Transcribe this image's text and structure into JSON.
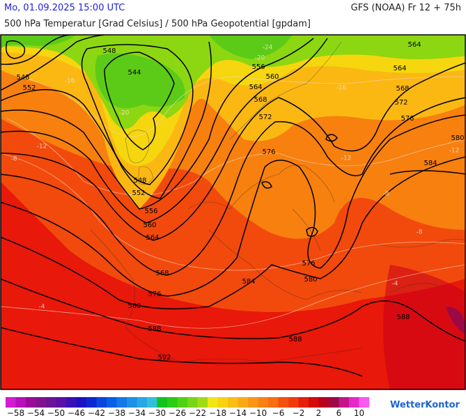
{
  "header": {
    "datetime": "Mo, 01.09.2025 15:00 UTC",
    "model": "GFS (NOAA) Fr 12 + 75h",
    "subtitle": "500 hPa Temperatur [Grad Celsius] / 500 hPa Geopotential [gpdam]"
  },
  "map": {
    "contour_labels": [
      "548",
      "544",
      "548",
      "552",
      "556",
      "560",
      "564",
      "568",
      "572",
      "576",
      "548",
      "552",
      "556",
      "560",
      "564",
      "568",
      "576",
      "580",
      "584",
      "580",
      "576",
      "588",
      "588",
      "592",
      "588",
      "564",
      "564",
      "568",
      "572",
      "576",
      "580",
      "584"
    ],
    "isotherm_labels": [
      "-24",
      "-20",
      "-20",
      "-16",
      "-16",
      "-12",
      "-12",
      "-12",
      "-8",
      "-8",
      "-8",
      "-4",
      "-4"
    ]
  },
  "legend": {
    "colors": [
      "#d21cd2",
      "#b80fb8",
      "#9b0a9b",
      "#80128c",
      "#6a1596",
      "#5a10a6",
      "#3a10b4",
      "#1c12c4",
      "#0a28d2",
      "#0a46dc",
      "#0a5ee6",
      "#1478e6",
      "#1e90e6",
      "#28a8e6",
      "#30c0dc",
      "#10c31e",
      "#28cd14",
      "#50d214",
      "#78d714",
      "#a0dc14",
      "#f0e614",
      "#fad214",
      "#fabe14",
      "#faaa14",
      "#fa9614",
      "#fa8214",
      "#f86e10",
      "#f5500c",
      "#f03c0a",
      "#e6200a",
      "#d70a0a",
      "#b9001e",
      "#9b0a46",
      "#c3148c",
      "#e628c8",
      "#fa5af0"
    ],
    "ticks": [
      "−58",
      "−54",
      "−50",
      "−46",
      "−42",
      "−38",
      "−34",
      "−30",
      "−26",
      "−22",
      "−18",
      "−14",
      "−10",
      "−6",
      "−2",
      "2",
      "6",
      "10"
    ]
  },
  "brand": "WetterKontor"
}
